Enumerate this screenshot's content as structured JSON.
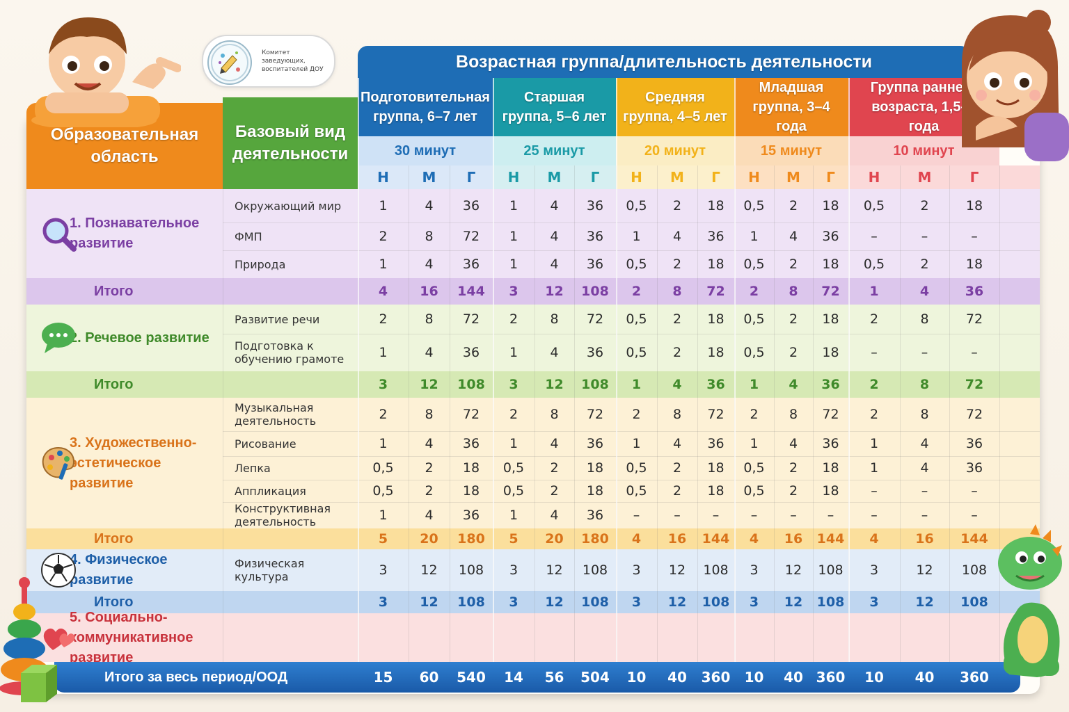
{
  "logo": {
    "text": "Комитет заведующих, воспитателей ДОУ"
  },
  "header": {
    "main_title": "Возрастная группа/длительность деятельности",
    "col_area": "Образовательная область",
    "col_activity": "Базовый вид деятельности"
  },
  "groups": [
    {
      "name": "Подготовительная группа, 6–7 лет",
      "duration": "30 минут",
      "color": "#1e6db5",
      "light": "#cfe2f6",
      "sub": "#dbe8f8"
    },
    {
      "name": "Старшая группа, 5–6 лет",
      "duration": "25 минут",
      "color": "#1a9aa6",
      "light": "#cdeef0",
      "sub": "#d6eff1"
    },
    {
      "name": "Средняя группа, 4–5 лет",
      "duration": "20 минут",
      "color": "#f2b21a",
      "light": "#fbedc4",
      "sub": "#fcf0cc"
    },
    {
      "name": "Младшая группа, 3–4 года",
      "duration": "15 минут",
      "color": "#ef8a1c",
      "light": "#fbdcb8",
      "sub": "#fde0c2"
    },
    {
      "name": "Группа раннего возраста, 1,5–3 года",
      "duration": "10 минут",
      "color": "#e0454f",
      "light": "#f9d2d2",
      "sub": "#fbd9d9"
    }
  ],
  "nmg_labels": [
    "Н",
    "М",
    "Г"
  ],
  "sections": [
    {
      "title": "1. Познавательное развитие",
      "icon": "magnifier-icon",
      "color": "#7b3fa3",
      "bg": "#efe3f6",
      "total_bg": "#dcc6ec",
      "rows": [
        {
          "activity": "Окружающий мир",
          "values": [
            "1",
            "4",
            "36",
            "1",
            "4",
            "36",
            "0,5",
            "2",
            "18",
            "0,5",
            "2",
            "18",
            "0,5",
            "2",
            "18"
          ]
        },
        {
          "activity": "ФМП",
          "values": [
            "2",
            "8",
            "72",
            "1",
            "4",
            "36",
            "1",
            "4",
            "36",
            "1",
            "4",
            "36",
            "–",
            "–",
            "–"
          ]
        },
        {
          "activity": "Природа",
          "values": [
            "1",
            "4",
            "36",
            "1",
            "4",
            "36",
            "0,5",
            "2",
            "18",
            "0,5",
            "2",
            "18",
            "0,5",
            "2",
            "18"
          ]
        }
      ],
      "total_label": "Итого",
      "totals": [
        "4",
        "16",
        "144",
        "3",
        "12",
        "108",
        "2",
        "8",
        "72",
        "2",
        "8",
        "72",
        "1",
        "4",
        "36"
      ]
    },
    {
      "title": "2. Речевое развитие",
      "icon": "speech-bubble-icon",
      "color": "#3f8a2a",
      "bg": "#eef5dc",
      "total_bg": "#d6e9b4",
      "rows": [
        {
          "activity": "Развитие речи",
          "values": [
            "2",
            "8",
            "72",
            "2",
            "8",
            "72",
            "0,5",
            "2",
            "18",
            "0,5",
            "2",
            "18",
            "2",
            "8",
            "72"
          ]
        },
        {
          "activity": "Подготовка к обучению грамоте",
          "values": [
            "1",
            "4",
            "36",
            "1",
            "4",
            "36",
            "0,5",
            "2",
            "18",
            "0,5",
            "2",
            "18",
            "–",
            "–",
            "–"
          ]
        }
      ],
      "total_label": "Итого",
      "totals": [
        "3",
        "12",
        "108",
        "3",
        "12",
        "108",
        "1",
        "4",
        "36",
        "1",
        "4",
        "36",
        "2",
        "8",
        "72"
      ]
    },
    {
      "title": "3. Художественно-эстетическое развитие",
      "icon": "palette-icon",
      "color": "#d9731a",
      "bg": "#fdf1d6",
      "total_bg": "#fbdf9c",
      "rows": [
        {
          "activity": "Музыкальная деятельность",
          "values": [
            "2",
            "8",
            "72",
            "2",
            "8",
            "72",
            "2",
            "8",
            "72",
            "2",
            "8",
            "72",
            "2",
            "8",
            "72"
          ]
        },
        {
          "activity": "Рисование",
          "values": [
            "1",
            "4",
            "36",
            "1",
            "4",
            "36",
            "1",
            "4",
            "36",
            "1",
            "4",
            "36",
            "1",
            "4",
            "36"
          ]
        },
        {
          "activity": "Лепка",
          "values": [
            "0,5",
            "2",
            "18",
            "0,5",
            "2",
            "18",
            "0,5",
            "2",
            "18",
            "0,5",
            "2",
            "18",
            "1",
            "4",
            "36"
          ]
        },
        {
          "activity": "Аппликация",
          "values": [
            "0,5",
            "2",
            "18",
            "0,5",
            "2",
            "18",
            "0,5",
            "2",
            "18",
            "0,5",
            "2",
            "18",
            "–",
            "–",
            "–"
          ]
        },
        {
          "activity": "Конструктивная деятельность",
          "values": [
            "1",
            "4",
            "36",
            "1",
            "4",
            "36",
            "–",
            "–",
            "–",
            "–",
            "–",
            "–",
            "–",
            "–",
            "–"
          ]
        }
      ],
      "total_label": "Итого",
      "totals": [
        "5",
        "20",
        "180",
        "5",
        "20",
        "180",
        "4",
        "16",
        "144",
        "4",
        "16",
        "144",
        "4",
        "16",
        "144"
      ]
    },
    {
      "title": "4. Физическое развитие",
      "icon": "soccer-ball-icon",
      "color": "#1e5fa8",
      "bg": "#e2ecf8",
      "total_bg": "#bfd6f0",
      "rows": [
        {
          "activity": "Физическая культура",
          "values": [
            "3",
            "12",
            "108",
            "3",
            "12",
            "108",
            "3",
            "12",
            "108",
            "3",
            "12",
            "108",
            "3",
            "12",
            "108"
          ]
        }
      ],
      "total_label": "Итого",
      "totals": [
        "3",
        "12",
        "108",
        "3",
        "12",
        "108",
        "3",
        "12",
        "108",
        "3",
        "12",
        "108",
        "3",
        "12",
        "108"
      ]
    },
    {
      "title": "5. Социально-коммуникативное развитие",
      "icon": "hearts-icon",
      "color": "#c8323c",
      "bg": "#fbe0e0",
      "rows": []
    }
  ],
  "grand_total": {
    "label": "Итого за весь период/ООД",
    "values": [
      "15",
      "60",
      "540",
      "14",
      "56",
      "504",
      "10",
      "40",
      "360",
      "10",
      "40",
      "360",
      "10",
      "40",
      "360"
    ]
  }
}
